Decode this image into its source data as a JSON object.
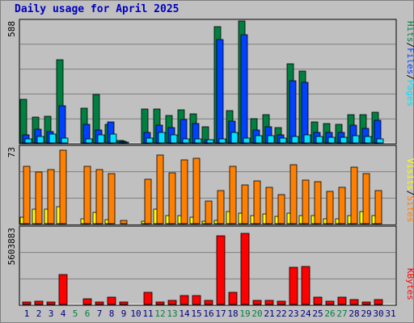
{
  "title": "Daily usage for April 2025",
  "colors": {
    "hits": "#008040",
    "files": "#0040ff",
    "pages": "#00e0ff",
    "visits": "#ffff00",
    "sites": "#ff8000",
    "kbytes": "#ff0000",
    "title": "#0000c0",
    "weekend": "#008040",
    "weekday": "#000080",
    "panel": "#c0c0c0",
    "border": "#000000"
  },
  "chart_data": [
    {
      "type": "bar",
      "name": "hits-files-pages",
      "ymax_label": "588",
      "ylim": [
        0,
        588
      ],
      "legend": [
        "Pages",
        "/",
        "Files",
        "/",
        "Hits"
      ],
      "categories": [
        "1",
        "2",
        "3",
        "4",
        "5",
        "6",
        "7",
        "8",
        "9",
        "10",
        "11",
        "12",
        "13",
        "14",
        "15",
        "16",
        "17",
        "18",
        "19",
        "20",
        "21",
        "22",
        "23",
        "24",
        "25",
        "26",
        "27",
        "28",
        "29",
        "30",
        "31"
      ],
      "series": [
        {
          "name": "Hits",
          "values": [
            210,
            125,
            130,
            405,
            0,
            170,
            235,
            90,
            12,
            0,
            165,
            165,
            135,
            160,
            140,
            78,
            565,
            158,
            590,
            118,
            138,
            75,
            385,
            350,
            102,
            95,
            92,
            138,
            138,
            150,
            0
          ]
        },
        {
          "name": "Files",
          "values": [
            38,
            65,
            55,
            180,
            0,
            92,
            62,
            100,
            8,
            0,
            50,
            85,
            75,
            115,
            95,
            15,
            500,
            105,
            525,
            62,
            80,
            40,
            300,
            295,
            52,
            52,
            52,
            88,
            70,
            108,
            0
          ]
        },
        {
          "name": "Pages",
          "values": [
            18,
            30,
            45,
            25,
            0,
            20,
            38,
            42,
            4,
            0,
            22,
            50,
            38,
            20,
            20,
            15,
            20,
            50,
            25,
            35,
            35,
            22,
            30,
            40,
            30,
            28,
            28,
            35,
            30,
            20,
            0
          ]
        }
      ]
    },
    {
      "type": "bar",
      "name": "visits-sites",
      "ymax_label": "73",
      "ylim": [
        0,
        73
      ],
      "legend": [
        "Sites",
        "/",
        "Visits"
      ],
      "categories": [
        "1",
        "2",
        "3",
        "4",
        "5",
        "6",
        "7",
        "8",
        "9",
        "10",
        "11",
        "12",
        "13",
        "14",
        "15",
        "16",
        "17",
        "18",
        "19",
        "20",
        "21",
        "22",
        "23",
        "24",
        "25",
        "26",
        "27",
        "28",
        "29",
        "30",
        "31"
      ],
      "series": [
        {
          "name": "Visits",
          "values": [
            6,
            14,
            14,
            16,
            0,
            5,
            11,
            4,
            0,
            0,
            2,
            14,
            8,
            8,
            6,
            2,
            3,
            12,
            10,
            8,
            9,
            7,
            10,
            8,
            8,
            5,
            5,
            8,
            12,
            8,
            0
          ]
        },
        {
          "name": "Sites",
          "values": [
            55,
            50,
            52,
            71,
            0,
            55,
            52,
            48,
            3,
            0,
            43,
            66,
            49,
            61,
            63,
            22,
            32,
            55,
            37,
            41,
            35,
            28,
            57,
            42,
            40,
            31,
            35,
            54,
            48,
            32,
            0
          ]
        }
      ]
    },
    {
      "type": "bar",
      "name": "kbytes",
      "ymax_label": "5603883",
      "ylim": [
        0,
        5603883
      ],
      "legend": [
        "KBytes"
      ],
      "categories": [
        "1",
        "2",
        "3",
        "4",
        "5",
        "6",
        "7",
        "8",
        "9",
        "10",
        "11",
        "12",
        "13",
        "14",
        "15",
        "16",
        "17",
        "18",
        "19",
        "20",
        "21",
        "22",
        "23",
        "24",
        "25",
        "26",
        "27",
        "28",
        "29",
        "30",
        "31"
      ],
      "series": [
        {
          "name": "KBytes",
          "values": [
            120000,
            220000,
            110000,
            2300000,
            0,
            440000,
            90000,
            560000,
            60000,
            0,
            950000,
            180000,
            280000,
            680000,
            700000,
            290000,
            5250000,
            900000,
            5400000,
            280000,
            300000,
            270000,
            2820000,
            2920000,
            570000,
            240000,
            560000,
            350000,
            140000,
            380000,
            0
          ]
        }
      ]
    }
  ],
  "x_axis": {
    "days": [
      "1",
      "2",
      "3",
      "4",
      "5",
      "6",
      "7",
      "8",
      "9",
      "10",
      "11",
      "12",
      "13",
      "14",
      "15",
      "16",
      "17",
      "18",
      "19",
      "20",
      "21",
      "22",
      "23",
      "24",
      "25",
      "26",
      "27",
      "28",
      "29",
      "30",
      "31"
    ],
    "weekend": [
      "5",
      "6",
      "12",
      "13",
      "19",
      "20",
      "26",
      "27"
    ]
  }
}
